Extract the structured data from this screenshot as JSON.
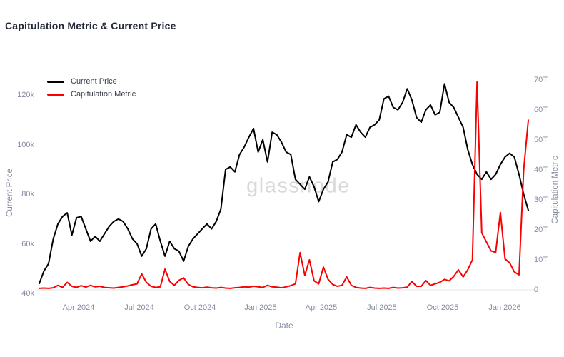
{
  "header": {
    "title": "Capitulation Metric & Current Price"
  },
  "legend": {
    "items": [
      {
        "label": "Current Price",
        "color": "#000000"
      },
      {
        "label": "Capitulation Metric",
        "color": "#fa0000"
      }
    ]
  },
  "watermark": {
    "text": "glassnode"
  },
  "colors": {
    "title": "#242938",
    "axis_text": "#868da2",
    "watermark": "#d9d9d9",
    "grid": "#ececec",
    "price_line": "#000000",
    "metric_line": "#fa0000"
  },
  "chart_data": {
    "type": "line",
    "title": "Capitulation Metric & Current Price",
    "xlabel": "Date",
    "grid": "zero-line-only",
    "legend_position": "top-left",
    "x_ticks": [
      {
        "label": "Apr 2024",
        "pos": 0.0803
      },
      {
        "label": "Jul 2024",
        "pos": 0.2044
      },
      {
        "label": "Oct 2024",
        "pos": 0.3285
      },
      {
        "label": "Jan 2025",
        "pos": 0.4526
      },
      {
        "label": "Apr 2025",
        "pos": 0.5766
      },
      {
        "label": "Jul 2025",
        "pos": 0.7007
      },
      {
        "label": "Oct 2025",
        "pos": 0.8248
      },
      {
        "label": "Jan 2026",
        "pos": 0.9518
      }
    ],
    "x_range_note": "weekly samples, Feb 2024 to Feb 2026",
    "left_axis": {
      "label": "Current Price",
      "unit": "USD thousands",
      "ylim": [
        40,
        120
      ],
      "ticks": [
        {
          "value": 40,
          "label": "40k"
        },
        {
          "value": 60,
          "label": "60k"
        },
        {
          "value": 80,
          "label": "80k"
        },
        {
          "value": 100,
          "label": "100k"
        },
        {
          "value": 120,
          "label": "120k"
        }
      ]
    },
    "right_axis": {
      "label": "Capitulation Metric",
      "unit": "trillions",
      "ylim": [
        0,
        70
      ],
      "ticks": [
        {
          "value": 0,
          "label": "0"
        },
        {
          "value": 10,
          "label": "10T"
        },
        {
          "value": 20,
          "label": "20T"
        },
        {
          "value": 30,
          "label": "30T"
        },
        {
          "value": 40,
          "label": "40T"
        },
        {
          "value": 50,
          "label": "50T"
        },
        {
          "value": 60,
          "label": "60T"
        },
        {
          "value": 70,
          "label": "70T"
        }
      ]
    },
    "series": [
      {
        "name": "Current Price",
        "axis": "left",
        "color": "#000000",
        "values": [
          44,
          49,
          52,
          62,
          68,
          71,
          72.5,
          63.5,
          70.5,
          71,
          66,
          61,
          63,
          61,
          64,
          67,
          69,
          70,
          69,
          66,
          62,
          60,
          55,
          58,
          66,
          68,
          61,
          55,
          61,
          58,
          57,
          53,
          59,
          62,
          64,
          66,
          68,
          66,
          69,
          74,
          90,
          91,
          89,
          96,
          99,
          103,
          106.5,
          97,
          102,
          93,
          105,
          104,
          101,
          97,
          96,
          86,
          84,
          82,
          87,
          83,
          77,
          82,
          85,
          93,
          94,
          97,
          104,
          103,
          108,
          105,
          103,
          107,
          108,
          110,
          118.5,
          119.5,
          115,
          114,
          117,
          122.5,
          118,
          111,
          109,
          114,
          116,
          112,
          113,
          124.5,
          117,
          115,
          111,
          107,
          98,
          92,
          88,
          86,
          89,
          86,
          88,
          92,
          95,
          96.5,
          95,
          88,
          80,
          73.5
        ]
      },
      {
        "name": "Capitulation Metric",
        "axis": "right",
        "color": "#fa0000",
        "values": [
          0.5,
          0.6,
          0.5,
          0.7,
          1.5,
          0.8,
          2.5,
          1.2,
          0.8,
          1.4,
          0.9,
          1.5,
          1.0,
          1.2,
          0.8,
          0.7,
          0.6,
          0.8,
          1.0,
          1.3,
          1.7,
          2.0,
          5.3,
          2.5,
          1.2,
          0.8,
          1.0,
          6.9,
          2.8,
          1.5,
          3.2,
          4.0,
          1.8,
          1.0,
          0.8,
          0.7,
          0.9,
          0.7,
          0.6,
          0.8,
          0.6,
          0.5,
          0.7,
          0.8,
          1.0,
          0.9,
          1.2,
          1.0,
          0.8,
          1.5,
          1.0,
          0.9,
          0.7,
          1.0,
          1.4,
          2.0,
          12.4,
          4.8,
          10.0,
          3.0,
          2.0,
          7.6,
          3.5,
          1.8,
          1.2,
          1.5,
          4.3,
          1.5,
          0.8,
          0.6,
          0.5,
          0.8,
          0.6,
          0.5,
          0.6,
          0.5,
          0.8,
          0.6,
          0.7,
          0.9,
          2.8,
          1.2,
          1.2,
          3.1,
          1.5,
          2.0,
          2.5,
          3.5,
          3.0,
          4.5,
          6.7,
          4.3,
          6.7,
          10.0,
          69.3,
          19.0,
          16.0,
          13.0,
          12.5,
          25.8,
          10.3,
          9.0,
          6.0,
          5.0,
          40.0,
          56.6
        ]
      }
    ]
  }
}
